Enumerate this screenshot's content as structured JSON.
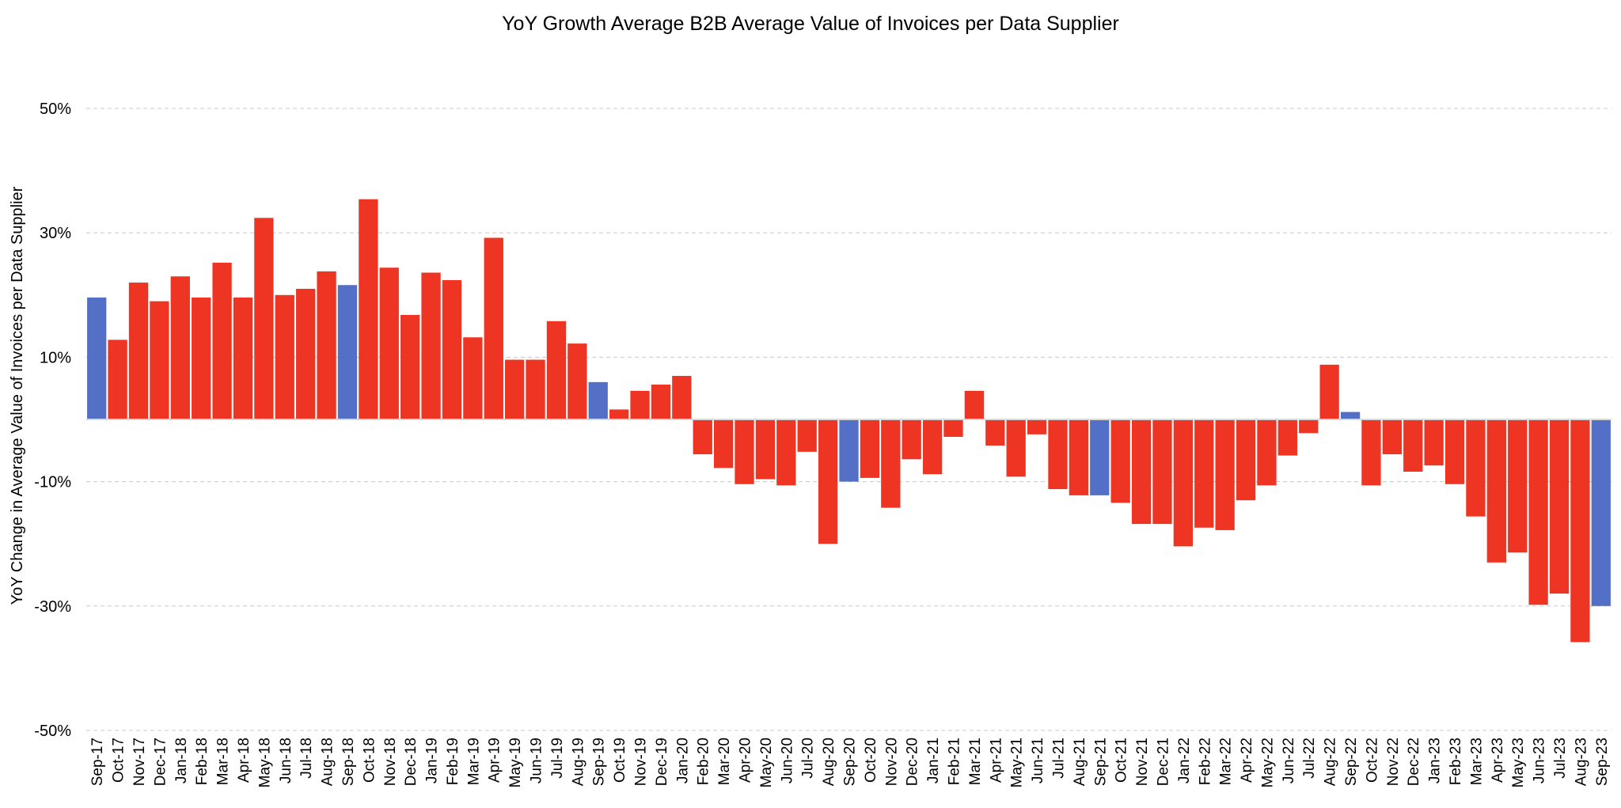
{
  "chart_data": {
    "type": "bar",
    "title": "YoY Growth Average B2B Average Value of Invoices per Data Supplier",
    "xlabel": "",
    "ylabel": "YoY Change in Average Value of Invoices per Data Supplier",
    "ylim": [
      -50,
      50
    ],
    "yticks": [
      50,
      30,
      10,
      -10,
      -30,
      -50
    ],
    "ytick_labels": [
      "50%",
      "30%",
      "10%",
      "-10%",
      "-30%",
      "-50%"
    ],
    "grid": true,
    "legend": "none",
    "colors": {
      "default": "#ee3524",
      "highlight": "#5470c6",
      "grid": "#c8c8c8",
      "zero_line": "#d9d9d9"
    },
    "categories": [
      "Sep-17",
      "Oct-17",
      "Nov-17",
      "Dec-17",
      "Jan-18",
      "Feb-18",
      "Mar-18",
      "Apr-18",
      "May-18",
      "Jun-18",
      "Jul-18",
      "Aug-18",
      "Sep-18",
      "Oct-18",
      "Nov-18",
      "Dec-18",
      "Jan-19",
      "Feb-19",
      "Mar-19",
      "Apr-19",
      "May-19",
      "Jun-19",
      "Jul-19",
      "Aug-19",
      "Sep-19",
      "Oct-19",
      "Nov-19",
      "Dec-19",
      "Jan-20",
      "Feb-20",
      "Mar-20",
      "Apr-20",
      "May-20",
      "Jun-20",
      "Jul-20",
      "Aug-20",
      "Sep-20",
      "Oct-20",
      "Nov-20",
      "Dec-20",
      "Jan-21",
      "Feb-21",
      "Mar-21",
      "Apr-21",
      "May-21",
      "Jun-21",
      "Jul-21",
      "Aug-21",
      "Sep-21",
      "Oct-21",
      "Nov-21",
      "Dec-21",
      "Jan-22",
      "Feb-22",
      "Mar-22",
      "Apr-22",
      "May-22",
      "Jun-22",
      "Jul-22",
      "Aug-22",
      "Sep-22",
      "Oct-22",
      "Nov-22",
      "Dec-22",
      "Jan-23",
      "Feb-23",
      "Mar-23",
      "Apr-23",
      "May-23",
      "Jun-23",
      "Jul-23",
      "Aug-23",
      "Sep-23"
    ],
    "values": [
      19.6,
      12.8,
      22.0,
      19.0,
      23.0,
      19.6,
      25.2,
      19.6,
      32.4,
      20.0,
      21.0,
      23.8,
      21.6,
      35.4,
      24.4,
      16.8,
      23.6,
      22.4,
      13.2,
      29.2,
      9.6,
      9.6,
      15.8,
      12.2,
      6.0,
      1.6,
      4.6,
      5.6,
      7.0,
      -5.6,
      -7.8,
      -10.4,
      -9.6,
      -10.6,
      -5.2,
      -20.0,
      -10.0,
      -9.4,
      -14.2,
      -6.4,
      -8.8,
      -2.8,
      4.6,
      -4.2,
      -9.2,
      -2.4,
      -11.2,
      -12.2,
      -12.2,
      -13.4,
      -16.8,
      -16.8,
      -20.4,
      -17.4,
      -17.8,
      -13.0,
      -10.6,
      -5.8,
      -2.2,
      8.8,
      1.2,
      -10.6,
      -5.6,
      -8.4,
      -7.4,
      -10.4,
      -15.6,
      -23.0,
      -21.4,
      -29.8,
      -28.0,
      -35.8,
      -30.0
    ],
    "highlight_indices": [
      0,
      12,
      24,
      36,
      48,
      60,
      72
    ]
  }
}
